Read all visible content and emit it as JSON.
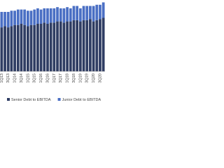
{
  "chart_data": {
    "type": "stacked-bar",
    "categories": [
      "1Q13",
      null,
      "3Q13",
      null,
      "1Q14",
      null,
      "3Q14",
      null,
      "1Q15",
      null,
      "3Q15",
      null,
      "1Q16",
      null,
      "3Q16",
      null,
      "1Q17",
      null,
      "3Q17",
      null,
      "1Q18",
      null,
      "3Q18",
      null,
      "1Q19",
      null,
      "3Q19",
      null,
      "1Q20",
      null,
      "3Q20",
      null
    ],
    "series": [
      {
        "name": "Senior Debt to EBITDA",
        "color": "#2f3d63",
        "values": [
          3.7,
          3.8,
          3.7,
          3.8,
          3.9,
          3.9,
          4.0,
          3.9,
          3.8,
          3.9,
          3.9,
          4.0,
          4.0,
          4.1,
          4.0,
          4.1,
          4.1,
          4.2,
          4.2,
          4.1,
          4.2,
          4.2,
          4.3,
          4.3,
          4.2,
          4.3,
          4.3,
          4.4,
          4.2,
          4.3,
          4.4,
          4.5
        ]
      },
      {
        "name": "Junior Debt to EBITDA",
        "color": "#4a6fc4",
        "values": [
          1.3,
          1.2,
          1.3,
          1.3,
          1.2,
          1.3,
          1.2,
          1.3,
          1.3,
          1.2,
          1.3,
          1.3,
          1.2,
          1.2,
          1.3,
          1.2,
          1.2,
          1.2,
          1.1,
          1.2,
          1.2,
          1.1,
          1.2,
          1.2,
          1.1,
          1.2,
          1.2,
          1.1,
          1.3,
          1.3,
          1.2,
          1.3
        ]
      }
    ],
    "ylim": [
      0,
      6
    ],
    "legend": "bottom"
  }
}
